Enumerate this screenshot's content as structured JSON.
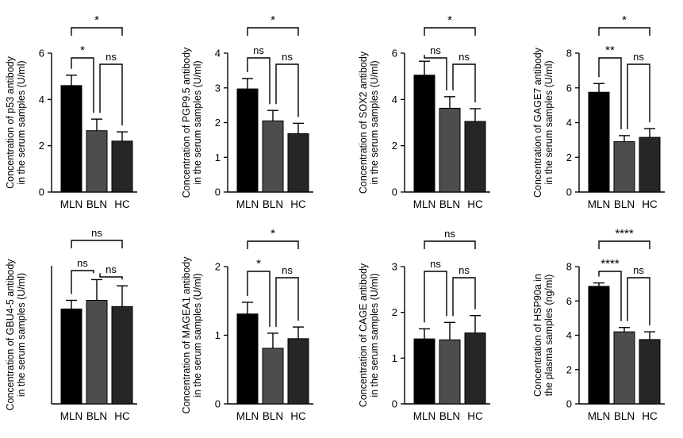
{
  "chart_data": [
    {
      "type": "bar",
      "ylabel": [
        "Concentration of p53 antibody",
        "in the serum samples (U/ml)"
      ],
      "categories": [
        "MLN",
        "BLN",
        "HC"
      ],
      "values": [
        4.6,
        2.65,
        2.2
      ],
      "errors": [
        0.45,
        0.5,
        0.4
      ],
      "ylim": [
        0,
        6
      ],
      "yticks": [
        "0",
        "2",
        "4",
        "6"
      ],
      "bar_colors": [
        "#000000",
        "#4d4d4d",
        "#262626"
      ],
      "significance": [
        {
          "from": 0,
          "to": 1,
          "label": "*"
        },
        {
          "from": 1,
          "to": 2,
          "label": "ns"
        },
        {
          "from": 0,
          "to": 2,
          "label": "*"
        }
      ]
    },
    {
      "type": "bar",
      "ylabel": [
        "Concentration of PGP9.5 antibody",
        "in the serum samples (U/ml)"
      ],
      "categories": [
        "MLN",
        "BLN",
        "HC"
      ],
      "values": [
        2.97,
        2.05,
        1.68
      ],
      "errors": [
        0.3,
        0.3,
        0.3
      ],
      "ylim": [
        0,
        4
      ],
      "yticks": [
        "0",
        "1",
        "2",
        "3",
        "4"
      ],
      "bar_colors": [
        "#000000",
        "#4d4d4d",
        "#262626"
      ],
      "significance": [
        {
          "from": 0,
          "to": 1,
          "label": "ns"
        },
        {
          "from": 1,
          "to": 2,
          "label": "ns"
        },
        {
          "from": 0,
          "to": 2,
          "label": "*"
        }
      ]
    },
    {
      "type": "bar",
      "ylabel": [
        "Concentration of SOX2 antibody",
        "in the serum samples (U/ml)"
      ],
      "categories": [
        "MLN",
        "BLN",
        "HC"
      ],
      "values": [
        5.05,
        3.62,
        3.05
      ],
      "errors": [
        0.6,
        0.5,
        0.55
      ],
      "ylim": [
        0,
        6
      ],
      "yticks": [
        "0",
        "2",
        "4",
        "6"
      ],
      "bar_colors": [
        "#000000",
        "#4d4d4d",
        "#262626"
      ],
      "significance": [
        {
          "from": 0,
          "to": 1,
          "label": "ns"
        },
        {
          "from": 1,
          "to": 2,
          "label": "ns"
        },
        {
          "from": 0,
          "to": 2,
          "label": "*"
        }
      ]
    },
    {
      "type": "bar",
      "ylabel": [
        "Concentration of GAGE7 antibody",
        "in the serum samples (U/ml)"
      ],
      "categories": [
        "MLN",
        "BLN",
        "HC"
      ],
      "values": [
        5.75,
        2.9,
        3.15
      ],
      "errors": [
        0.5,
        0.35,
        0.5
      ],
      "ylim": [
        0,
        8
      ],
      "yticks": [
        "0",
        "2",
        "4",
        "6",
        "8"
      ],
      "bar_colors": [
        "#000000",
        "#4d4d4d",
        "#262626"
      ],
      "significance": [
        {
          "from": 0,
          "to": 1,
          "label": "**"
        },
        {
          "from": 1,
          "to": 2,
          "label": "ns"
        },
        {
          "from": 0,
          "to": 2,
          "label": "*"
        }
      ]
    },
    {
      "type": "bar",
      "ylabel": [
        "Concentration of GBU4-5 antibody",
        "in the serum samples (U/ml)"
      ],
      "categories": [
        "MLN",
        "BLN",
        "HC"
      ],
      "values": [
        2.75,
        3.0,
        2.82
      ],
      "errors": [
        0.25,
        0.6,
        0.6
      ],
      "ylim": [
        0,
        4
      ],
      "yticks": [],
      "bar_colors": [
        "#000000",
        "#4d4d4d",
        "#262626"
      ],
      "significance": [
        {
          "from": 0,
          "to": 1,
          "label": "ns"
        },
        {
          "from": 1,
          "to": 2,
          "label": "ns"
        },
        {
          "from": 0,
          "to": 2,
          "label": "ns"
        }
      ]
    },
    {
      "type": "bar",
      "ylabel": [
        "Concentration of MAGEA1 antibody",
        "in the serum samples (U/ml)"
      ],
      "categories": [
        "MLN",
        "BLN",
        "HC"
      ],
      "values": [
        1.31,
        0.81,
        0.95
      ],
      "errors": [
        0.17,
        0.22,
        0.17
      ],
      "ylim": [
        0,
        2
      ],
      "yticks": [
        "0",
        "1",
        "2"
      ],
      "bar_colors": [
        "#000000",
        "#4d4d4d",
        "#262626"
      ],
      "significance": [
        {
          "from": 0,
          "to": 1,
          "label": "*"
        },
        {
          "from": 1,
          "to": 2,
          "label": "ns"
        },
        {
          "from": 0,
          "to": 2,
          "label": "*"
        }
      ]
    },
    {
      "type": "bar",
      "ylabel": [
        "Concentration of CAGE antibody",
        "in the serum samples (U/ml)"
      ],
      "categories": [
        "MLN",
        "BLN",
        "HC"
      ],
      "values": [
        1.42,
        1.4,
        1.55
      ],
      "errors": [
        0.22,
        0.38,
        0.38
      ],
      "ylim": [
        0,
        3
      ],
      "yticks": [
        "0",
        "1",
        "2",
        "3"
      ],
      "bar_colors": [
        "#000000",
        "#4d4d4d",
        "#262626"
      ],
      "significance": [
        {
          "from": 0,
          "to": 1,
          "label": "ns"
        },
        {
          "from": 1,
          "to": 2,
          "label": "ns"
        },
        {
          "from": 0,
          "to": 2,
          "label": "ns"
        }
      ]
    },
    {
      "type": "bar",
      "ylabel": [
        "Concentration of HSP90a in",
        "the plasma samples (ng/ml)"
      ],
      "categories": [
        "MLN",
        "BLN",
        "HC"
      ],
      "values": [
        6.85,
        4.2,
        3.75
      ],
      "errors": [
        0.2,
        0.25,
        0.45
      ],
      "ylim": [
        0,
        8
      ],
      "yticks": [
        "0",
        "2",
        "4",
        "6",
        "8"
      ],
      "bar_colors": [
        "#000000",
        "#4d4d4d",
        "#262626"
      ],
      "significance": [
        {
          "from": 0,
          "to": 1,
          "label": "****"
        },
        {
          "from": 1,
          "to": 2,
          "label": "ns"
        },
        {
          "from": 0,
          "to": 2,
          "label": "****"
        }
      ]
    }
  ]
}
